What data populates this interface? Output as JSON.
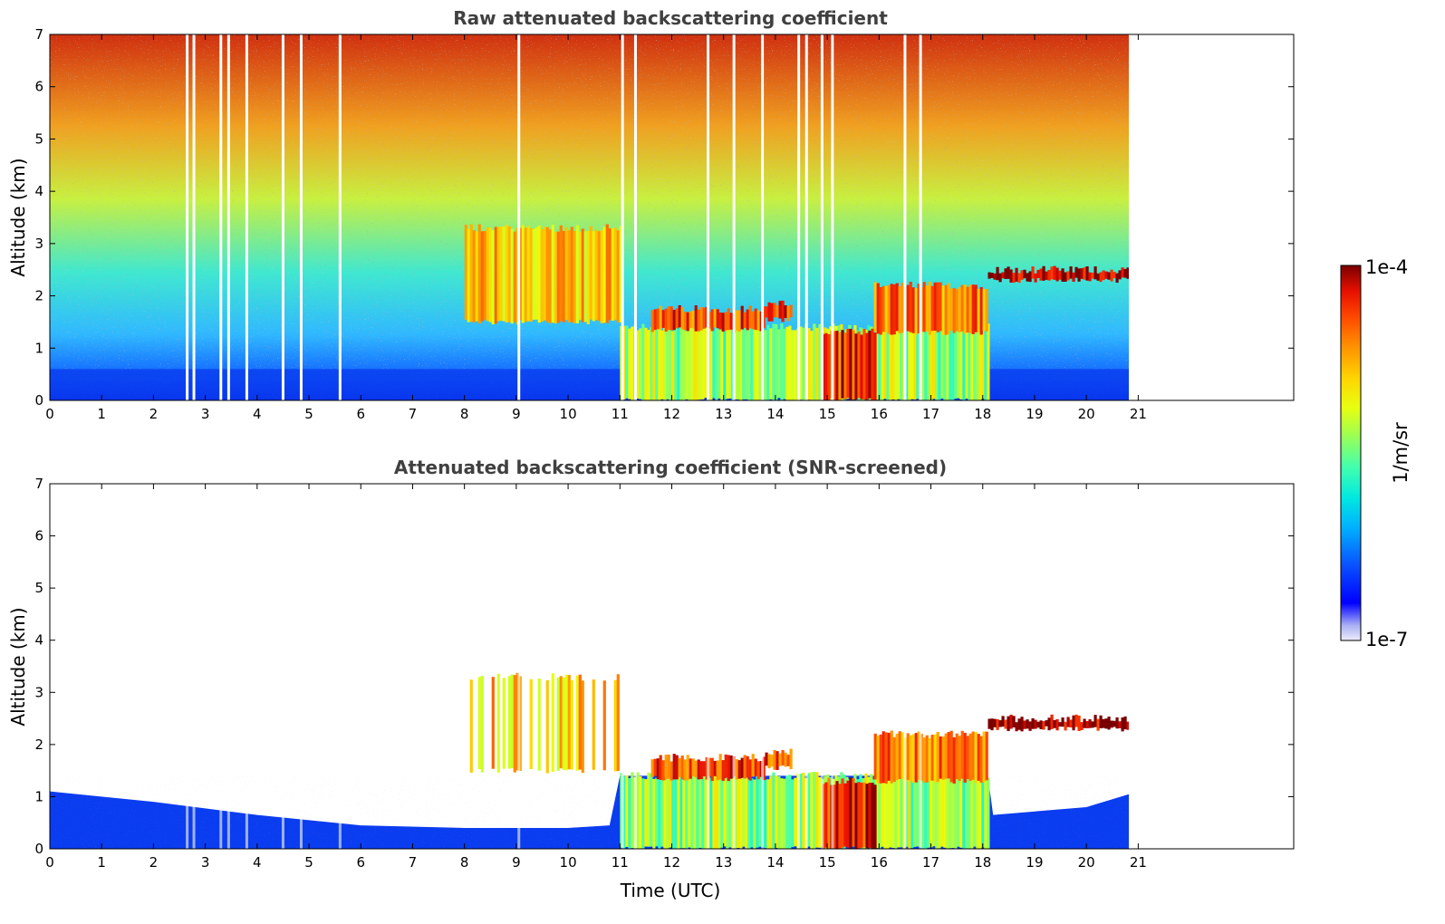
{
  "chart_data": [
    {
      "type": "heatmap",
      "title": "Raw attenuated backscattering coefficient",
      "xlabel": "",
      "ylabel": "Altitude (km)",
      "xlim": [
        0,
        24
      ],
      "ylim": [
        0,
        7
      ],
      "xticks": [
        "0",
        "1",
        "2",
        "3",
        "4",
        "5",
        "6",
        "7",
        "8",
        "9",
        "10",
        "11",
        "12",
        "13",
        "14",
        "15",
        "16",
        "17",
        "18",
        "19",
        "20",
        "21"
      ],
      "yticks": [
        "0",
        "1",
        "2",
        "3",
        "4",
        "5",
        "6",
        "7"
      ],
      "data_end_time": 21,
      "gaps": [
        2.65,
        2.78,
        3.3,
        3.45,
        3.8,
        4.5,
        4.85,
        5.6,
        9.05,
        11.05,
        11.3,
        12.7,
        13.2,
        13.75,
        14.45,
        14.6,
        14.9,
        15.1,
        16.5,
        16.8
      ],
      "layers": [
        {
          "name": "boundary-layer",
          "x": [
            11.0,
            18.1
          ],
          "y": [
            0,
            1.4
          ],
          "level": 0.55
        },
        {
          "name": "cloud-layer",
          "x": [
            11.6,
            13.8
          ],
          "y": [
            1.35,
            1.75
          ],
          "level": 0.85
        },
        {
          "name": "cloud-layer",
          "x": [
            13.8,
            14.3
          ],
          "y": [
            1.55,
            1.85
          ],
          "level": 0.85
        },
        {
          "name": "cloud-layer",
          "x": [
            14.9,
            15.9
          ],
          "y": [
            0,
            1.3
          ],
          "level": 0.88
        },
        {
          "name": "cloud-layer",
          "x": [
            15.9,
            18.1
          ],
          "y": [
            1.3,
            2.2
          ],
          "level": 0.8
        },
        {
          "name": "elevated-layer",
          "x": [
            18.1,
            21.0
          ],
          "y": [
            2.3,
            2.5
          ],
          "level": 0.98
        },
        {
          "name": "aerosol-plume",
          "x": [
            8.0,
            11.0
          ],
          "y": [
            1.5,
            3.3
          ],
          "level": 0.7
        }
      ]
    },
    {
      "type": "heatmap",
      "title": "Attenuated backscattering coefficient (SNR-screened)",
      "xlabel": "Time (UTC)",
      "ylabel": "Altitude (km)",
      "xlim": [
        0,
        24
      ],
      "ylim": [
        0,
        7
      ],
      "xticks": [
        "0",
        "1",
        "2",
        "3",
        "4",
        "5",
        "6",
        "7",
        "8",
        "9",
        "10",
        "11",
        "12",
        "13",
        "14",
        "15",
        "16",
        "17",
        "18",
        "19",
        "20",
        "21"
      ],
      "yticks": [
        "0",
        "1",
        "2",
        "3",
        "4",
        "5",
        "6",
        "7"
      ],
      "data_end_time": 21,
      "boundary_layer_top": [
        [
          0,
          1.1
        ],
        [
          2,
          0.9
        ],
        [
          4,
          0.65
        ],
        [
          6,
          0.45
        ],
        [
          8,
          0.4
        ],
        [
          10,
          0.4
        ],
        [
          10.8,
          0.45
        ],
        [
          11.0,
          1.4
        ],
        [
          18.1,
          1.4
        ],
        [
          18.2,
          0.65
        ],
        [
          20,
          0.8
        ],
        [
          21,
          1.1
        ]
      ]
    }
  ],
  "colorbar": {
    "label": "1/m/sr",
    "max_label": "1e-4",
    "min_label": "1e-7",
    "scale": "log",
    "colormap": [
      "#ececfb",
      "#aab0f5",
      "#0000ff",
      "#0a50ff",
      "#00b0ff",
      "#00e8e0",
      "#40ffb0",
      "#a0ff50",
      "#e8ff10",
      "#ffd400",
      "#ff9400",
      "#ff4a00",
      "#e81000",
      "#7a0000"
    ]
  }
}
